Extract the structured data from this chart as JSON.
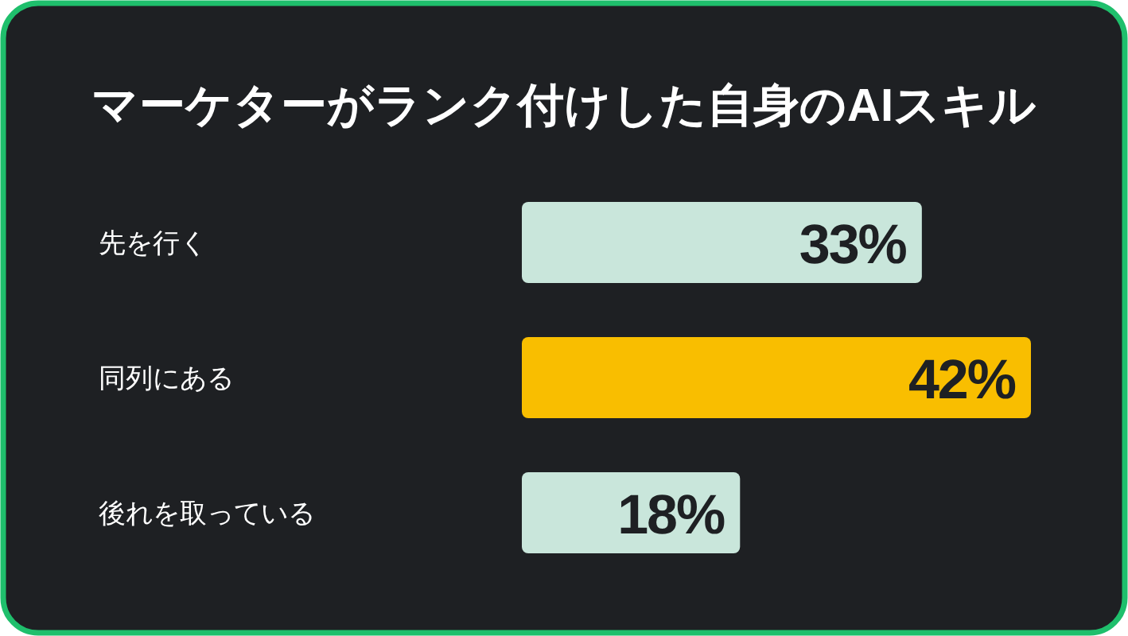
{
  "chart_data": {
    "type": "bar",
    "orientation": "horizontal",
    "title": "マーケターがランク付けした自身のAIスキル",
    "categories": [
      "先を行く",
      "同列にある",
      "後れを取っている"
    ],
    "values": [
      33,
      42,
      18
    ],
    "colors": [
      "#c9e6db",
      "#f9be00",
      "#c9e6db"
    ],
    "value_labels": [
      "33%",
      "42%",
      "18%"
    ]
  }
}
